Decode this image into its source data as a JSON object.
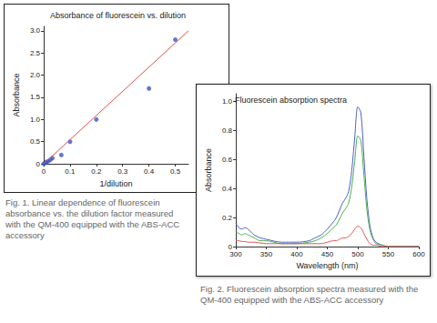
{
  "chart_data": [
    {
      "type": "scatter",
      "title": "Absorbance of fluorescein vs. dilution",
      "x_label": "1/dilution",
      "y_label": "Absorbance",
      "caption": "Fig. 1. Linear dependence of fluorescein absorbance vs. the dilution factor measured with the QM-400 equipped with the ABS-ACC accessory",
      "xlim": [
        0,
        0.55
      ],
      "xticks": [
        0,
        0.1,
        0.2,
        0.3,
        0.4,
        0.5
      ],
      "ylim": [
        0,
        3.1
      ],
      "yticks": [
        0,
        0.5,
        {
          "value": 1,
          "label": "1.0"
        },
        1.5,
        {
          "value": 2,
          "label": "2.0"
        },
        2.5,
        {
          "value": 3,
          "label": "3.0"
        }
      ],
      "grid": false,
      "series": [
        {
          "type": "scatter",
          "color": "#3b55c8",
          "marker": "circle",
          "x": [
            0,
            0.005,
            0.01,
            0.017,
            0.025,
            0.033,
            0.067,
            0.1,
            0.2,
            0.4,
            0.5
          ],
          "values": [
            0,
            0.02,
            0.04,
            0.06,
            0.09,
            0.13,
            0.2,
            0.5,
            1.0,
            1.7,
            2.8
          ]
        },
        {
          "type": "line",
          "color": "#e05050",
          "line_style": "solid",
          "x": [
            0,
            0.55
          ],
          "values": [
            0,
            3.0
          ]
        }
      ]
    },
    {
      "type": "line",
      "title": "Fluorescein absorption spectra",
      "x_label": "Wavelength (nm)",
      "y_label": "Absorbance",
      "caption": "Fig. 2. Fluorescein absorption spectra measured with the QM-400 equipped with the ABS-ACC accessory",
      "xlim": [
        300,
        600
      ],
      "xticks": [
        300,
        350,
        400,
        450,
        500,
        550,
        600
      ],
      "ylim": [
        0,
        1.05
      ],
      "yticks": [
        0,
        0.2,
        0.4,
        0.6,
        0.8,
        {
          "value": 1,
          "label": "1.0"
        }
      ],
      "grid": false,
      "x": [
        300,
        305,
        310,
        315,
        320,
        330,
        340,
        350,
        375,
        400,
        420,
        430,
        440,
        450,
        460,
        465,
        470,
        475,
        480,
        485,
        490,
        495,
        500,
        505,
        510,
        515,
        520,
        525,
        530,
        540,
        550,
        575,
        600
      ],
      "series": [
        {
          "color": "#4f60c8",
          "values": [
            0.16,
            0.13,
            0.12,
            0.13,
            0.12,
            0.08,
            0.06,
            0.05,
            0.03,
            0.03,
            0.04,
            0.06,
            0.08,
            0.12,
            0.17,
            0.2,
            0.25,
            0.3,
            0.33,
            0.38,
            0.52,
            0.75,
            0.96,
            0.92,
            0.62,
            0.32,
            0.14,
            0.06,
            0.03,
            0.01,
            0,
            0,
            0
          ]
        },
        {
          "color": "#4caf50",
          "values": [
            0.1,
            0.09,
            0.08,
            0.09,
            0.08,
            0.06,
            0.04,
            0.04,
            0.02,
            0.02,
            0.03,
            0.04,
            0.06,
            0.09,
            0.13,
            0.15,
            0.19,
            0.23,
            0.26,
            0.3,
            0.41,
            0.59,
            0.76,
            0.73,
            0.49,
            0.25,
            0.11,
            0.05,
            0.02,
            0.01,
            0,
            0,
            0
          ]
        },
        {
          "color": "#e05555",
          "values": [
            0.04,
            0.04,
            0.035,
            0.035,
            0.03,
            0.03,
            0.025,
            0.02,
            0.02,
            0.02,
            0.02,
            0.02,
            0.02,
            0.03,
            0.04,
            0.04,
            0.05,
            0.06,
            0.06,
            0.07,
            0.09,
            0.12,
            0.14,
            0.13,
            0.09,
            0.05,
            0.02,
            0.01,
            0.01,
            0,
            0,
            0,
            0
          ]
        }
      ]
    }
  ]
}
